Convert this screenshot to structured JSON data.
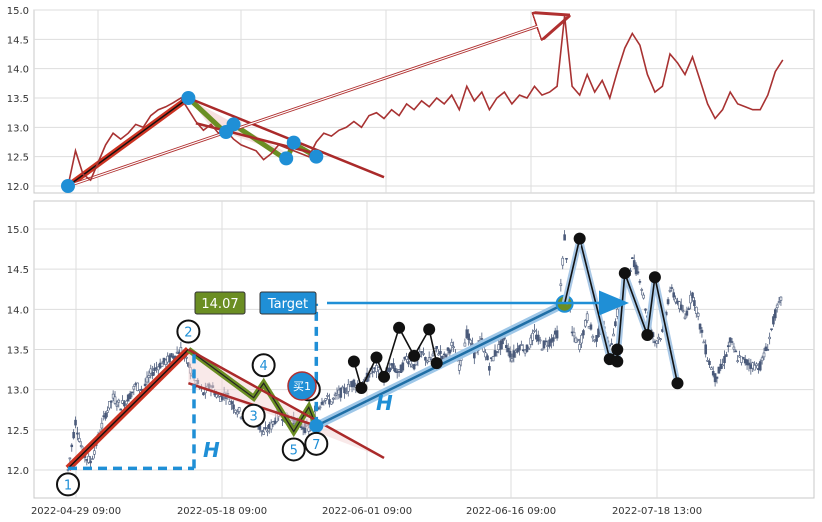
{
  "chart_data": [
    {
      "type": "line",
      "title": "",
      "xlabel": "",
      "ylabel": "",
      "ylim": [
        11.9,
        15.0
      ],
      "y_ticks": [
        "12.0",
        "12.5",
        "13.0",
        "13.5",
        "14.0",
        "14.5",
        "15.0"
      ],
      "grid": true,
      "series": [
        {
          "color": "#a83232",
          "x": [
            "2022-04-29 09:00",
            "2022-04-30",
            "2022-05-01",
            "2022-05-02",
            "2022-05-03",
            "2022-05-04",
            "2022-05-05",
            "2022-05-06",
            "2022-05-07",
            "2022-05-08",
            "2022-05-09",
            "2022-05-10",
            "2022-05-11",
            "2022-05-12",
            "2022-05-13",
            "2022-05-14",
            "2022-05-15",
            "2022-05-16",
            "2022-05-17",
            "2022-05-18",
            "2022-05-19",
            "2022-05-20",
            "2022-05-21",
            "2022-05-22",
            "2022-05-23",
            "2022-05-24",
            "2022-05-25",
            "2022-05-26",
            "2022-05-27",
            "2022-05-28",
            "2022-05-29",
            "2022-05-30",
            "2022-05-31",
            "2022-06-01",
            "2022-06-02",
            "2022-06-03",
            "2022-06-04",
            "2022-06-05",
            "2022-06-06",
            "2022-06-07",
            "2022-06-08",
            "2022-06-09",
            "2022-06-10",
            "2022-06-11",
            "2022-06-12",
            "2022-06-13",
            "2022-06-14",
            "2022-06-15",
            "2022-06-16",
            "2022-06-17",
            "2022-06-18",
            "2022-06-19",
            "2022-06-20",
            "2022-06-21",
            "2022-06-22",
            "2022-06-23",
            "2022-06-24",
            "2022-06-25",
            "2022-06-26",
            "2022-06-27",
            "2022-06-28",
            "2022-06-29",
            "2022-06-30",
            "2022-07-01",
            "2022-07-02",
            "2022-07-03",
            "2022-07-04",
            "2022-07-05",
            "2022-07-06",
            "2022-07-07",
            "2022-07-08",
            "2022-07-09",
            "2022-07-10",
            "2022-07-11",
            "2022-07-12",
            "2022-07-13",
            "2022-07-14",
            "2022-07-15",
            "2022-07-16",
            "2022-07-17",
            "2022-07-18",
            "2022-07-19",
            "2022-07-20",
            "2022-07-21",
            "2022-07-22",
            "2022-07-23",
            "2022-07-24",
            "2022-07-25",
            "2022-07-26",
            "2022-07-27",
            "2022-07-28",
            "2022-07-29",
            "2022-07-30",
            "2022-07-31",
            "2022-08-01",
            "2022-08-02"
          ],
          "y": [
            12.0,
            12.6,
            12.2,
            12.1,
            12.4,
            12.7,
            12.9,
            12.8,
            12.9,
            13.05,
            13.0,
            13.2,
            13.3,
            13.35,
            13.42,
            13.5,
            13.3,
            13.1,
            12.95,
            13.05,
            12.9,
            12.95,
            12.8,
            12.7,
            12.65,
            12.6,
            12.45,
            12.55,
            12.7,
            12.65,
            12.6,
            12.55,
            12.5,
            12.75,
            12.9,
            12.85,
            12.95,
            13.0,
            13.1,
            13.0,
            13.2,
            13.25,
            13.15,
            13.3,
            13.2,
            13.4,
            13.3,
            13.45,
            13.35,
            13.5,
            13.4,
            13.55,
            13.3,
            13.7,
            13.45,
            13.6,
            13.3,
            13.5,
            13.6,
            13.4,
            13.55,
            13.5,
            13.7,
            13.55,
            13.6,
            13.7,
            14.9,
            13.7,
            13.55,
            13.9,
            13.6,
            13.8,
            13.5,
            13.95,
            14.35,
            14.6,
            14.4,
            13.9,
            13.6,
            13.7,
            14.25,
            14.1,
            13.9,
            14.2,
            13.8,
            13.4,
            13.15,
            13.3,
            13.6,
            13.4,
            13.35,
            13.3,
            13.3,
            13.55,
            13.95,
            14.15
          ]
        }
      ]
    },
    {
      "type": "candlestick",
      "title": "",
      "xlabel": "",
      "ylabel": "",
      "ylim": [
        11.65,
        15.35
      ],
      "y_ticks": [
        "12.0",
        "12.5",
        "13.0",
        "13.5",
        "14.0",
        "14.5",
        "15.0"
      ],
      "x_tick_labels": [
        "2022-04-29 09:00",
        "2022-05-18 09:00",
        "2022-06-01 09:00",
        "2022-06-16 09:00",
        "2022-07-18 13:00"
      ],
      "grid": true,
      "pattern_points": [
        {
          "label": "1",
          "x": "2022-04-29 09:00",
          "y": 12.02
        },
        {
          "label": "2",
          "x": "2022-05-15",
          "y": 13.5
        },
        {
          "label": "3",
          "x": "2022-05-25",
          "y": 12.9
        },
        {
          "label": "4",
          "x": "2022-05-25",
          "y": 13.08
        },
        {
          "label": "5",
          "x": "2022-05-29",
          "y": 12.48
        },
        {
          "label": "6",
          "x": "2022-05-31",
          "y": 12.78
        },
        {
          "label": "7",
          "x": "2022-06-01 09:00",
          "y": 12.55
        }
      ],
      "swing_points": [
        {
          "x": "2022-06-06",
          "y": 13.35
        },
        {
          "x": "2022-06-07",
          "y": 13.02
        },
        {
          "x": "2022-06-09",
          "y": 13.4
        },
        {
          "x": "2022-06-10",
          "y": 13.16
        },
        {
          "x": "2022-06-12",
          "y": 13.77
        },
        {
          "x": "2022-06-14",
          "y": 13.42
        },
        {
          "x": "2022-06-16",
          "y": 13.75
        },
        {
          "x": "2022-06-17",
          "y": 13.33
        },
        {
          "x": "2022-07-06",
          "y": 14.88
        },
        {
          "x": "2022-07-10",
          "y": 13.38
        },
        {
          "x": "2022-07-11",
          "y": 13.5
        },
        {
          "x": "2022-07-11",
          "y": 13.35
        },
        {
          "x": "2022-07-12",
          "y": 14.45
        },
        {
          "x": "2022-07-15",
          "y": 13.68
        },
        {
          "x": "2022-07-16",
          "y": 14.4
        },
        {
          "x": "2022-07-19",
          "y": 13.08
        }
      ],
      "target_value": "14.07",
      "target_label": "Target",
      "buy_marker": "买1",
      "h_label": "H",
      "colors": {
        "up_leg": "#cc3322",
        "down_legs": "#6b8e23",
        "channel": "#aa2a2a",
        "projection": "#1f8fd6",
        "swing": "#111111",
        "target_box": "#6b8e23",
        "target_label_box": "#1f8fd6",
        "grid": "#d9d9d9",
        "candle": "#4a5a7a"
      }
    }
  ]
}
